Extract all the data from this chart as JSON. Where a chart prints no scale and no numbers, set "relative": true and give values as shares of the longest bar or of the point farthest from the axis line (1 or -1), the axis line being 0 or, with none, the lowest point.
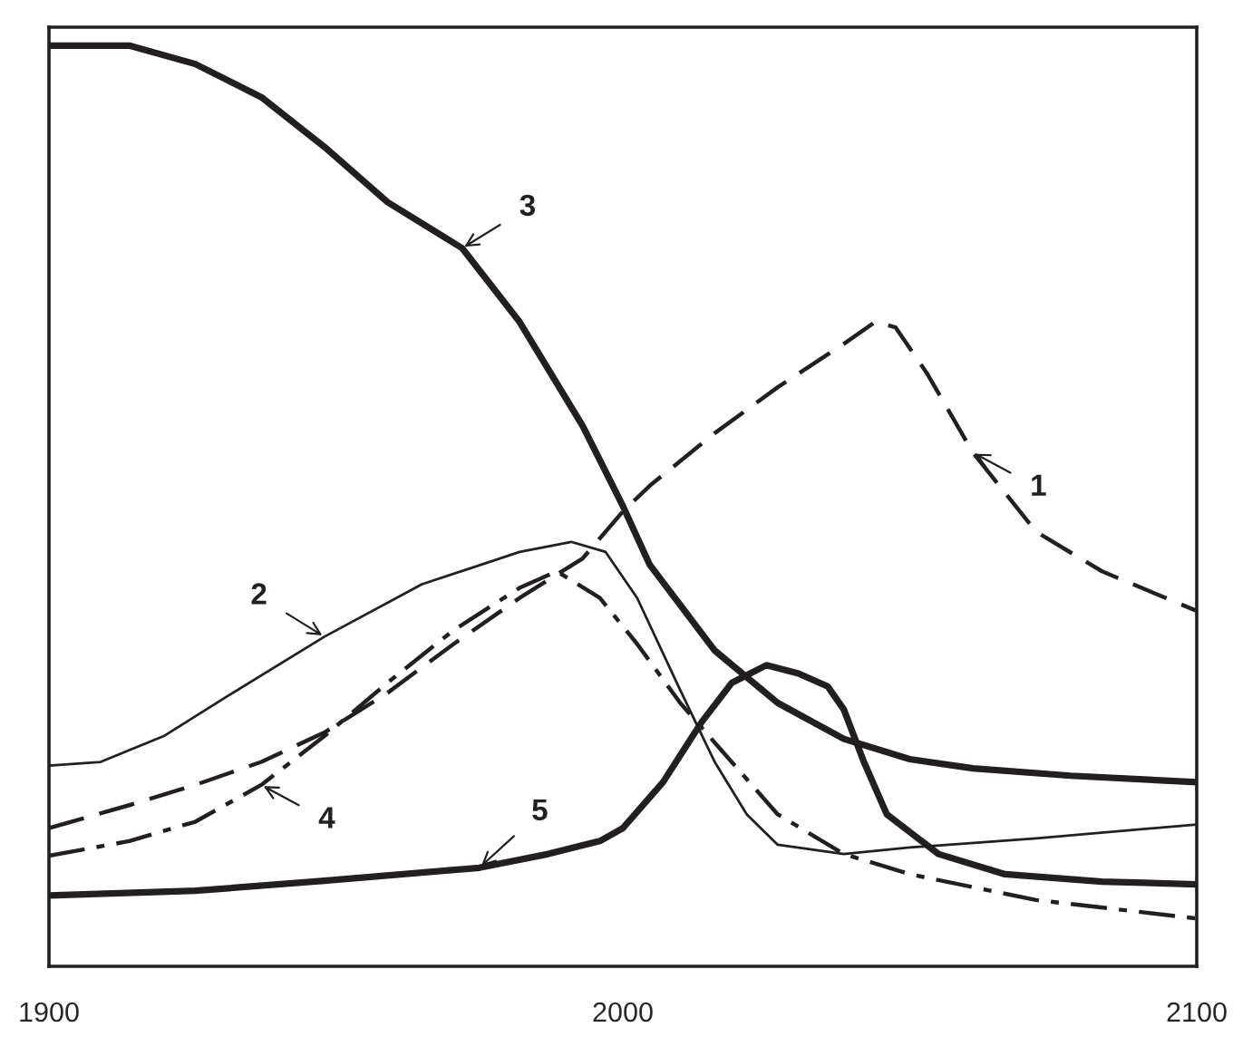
{
  "chart_data": {
    "type": "line",
    "relative": true,
    "xlim": [
      1900,
      2100
    ],
    "xticks": [
      1900,
      2000,
      2100
    ],
    "grid": false,
    "legend": false,
    "marker": "none",
    "series": [
      {
        "name": "1",
        "color": "#231f20",
        "line_style": "dashed",
        "x": [
          1900,
          1914,
          1925.5,
          1937,
          1948,
          1959,
          1970.5,
          1982,
          1993,
          2000,
          2004.7,
          2016,
          2027,
          2038.5,
          2044,
          2047.5,
          2053,
          2061,
          2072,
          2083.5,
          2100
        ],
        "values": [
          0.15,
          0.175,
          0.197,
          0.222,
          0.254,
          0.297,
          0.35,
          0.4,
          0.443,
          0.494,
          0.522,
          0.579,
          0.629,
          0.676,
          0.7,
          0.694,
          0.644,
          0.558,
          0.472,
          0.429,
          0.386
        ]
      },
      {
        "name": "2",
        "color": "#231f20",
        "line_style": "solid",
        "x": [
          1900,
          1909,
          1920,
          1931,
          1948,
          1965,
          1982,
          1991,
          1997,
          2002.5,
          2010,
          2016,
          2021.6,
          2027,
          2038.5,
          2050,
          2072,
          2100
        ],
        "values": [
          0.218,
          0.222,
          0.25,
          0.293,
          0.358,
          0.415,
          0.45,
          0.461,
          0.45,
          0.4,
          0.3,
          0.222,
          0.165,
          0.132,
          0.122,
          0.129,
          0.139,
          0.154
        ]
      },
      {
        "name": "3",
        "color": "#231f20",
        "line_style": "solid",
        "x": [
          1900,
          1914,
          1925.5,
          1937,
          1948,
          1959,
          1972,
          1982,
          1993,
          2000,
          2004.7,
          2016,
          2027,
          2038.5,
          2050,
          2061,
          2078,
          2100
        ],
        "values": [
          1.0,
          1.0,
          0.98,
          0.944,
          0.89,
          0.83,
          0.78,
          0.7,
          0.587,
          0.5,
          0.436,
          0.343,
          0.286,
          0.247,
          0.225,
          0.215,
          0.207,
          0.2
        ]
      },
      {
        "name": "4",
        "color": "#231f20",
        "line_style": "dashdot",
        "x": [
          1900,
          1914,
          1925.5,
          1937,
          1948,
          1959,
          1970.5,
          1982,
          1988.5,
          1996,
          2002.5,
          2010,
          2016,
          2027,
          2038.5,
          2050,
          2072,
          2100
        ],
        "values": [
          0.12,
          0.136,
          0.157,
          0.197,
          0.25,
          0.308,
          0.365,
          0.411,
          0.429,
          0.4,
          0.35,
          0.286,
          0.243,
          0.165,
          0.122,
          0.1,
          0.072,
          0.052
        ]
      },
      {
        "name": "5",
        "color": "#231f20",
        "line_style": "solid",
        "x": [
          1900,
          1925.5,
          1948,
          1975,
          1987,
          1996,
          2000,
          2007,
          2013.7,
          2019,
          2025,
          2030.6,
          2035.7,
          2038.5,
          2042,
          2046,
          2055,
          2066.6,
          2083.5,
          2100
        ],
        "values": [
          0.077,
          0.082,
          0.093,
          0.107,
          0.122,
          0.136,
          0.15,
          0.2,
          0.265,
          0.308,
          0.327,
          0.318,
          0.304,
          0.279,
          0.222,
          0.165,
          0.122,
          0.1,
          0.092,
          0.089
        ]
      }
    ]
  }
}
